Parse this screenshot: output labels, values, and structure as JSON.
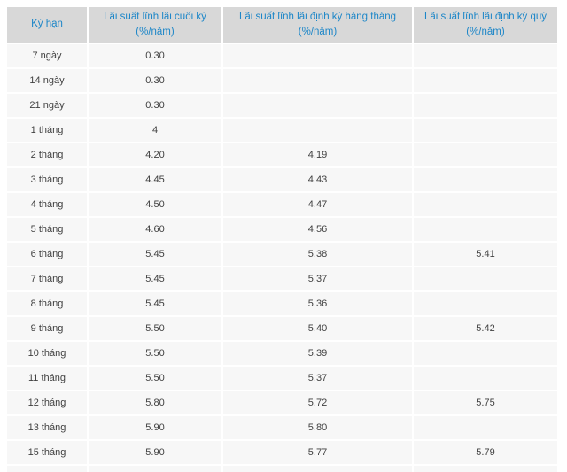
{
  "colors": {
    "page_background": "#ffffff",
    "header_background": "#d8d8d8",
    "header_text": "#1c86c8",
    "cell_background": "#f7f7f7",
    "cell_text": "#404040",
    "separator": "#ffffff"
  },
  "chart_data": {
    "type": "table",
    "title": "",
    "columns": [
      {
        "label": "Kỳ hạn",
        "sub": ""
      },
      {
        "label": "Lãi suất lĩnh lãi cuối kỳ",
        "sub": "(%/năm)"
      },
      {
        "label": "Lãi suất lĩnh lãi định kỳ hàng tháng",
        "sub": "(%/năm)"
      },
      {
        "label": "Lãi suất lĩnh lãi định kỳ quý",
        "sub": "(%/năm)"
      }
    ],
    "rows": [
      [
        "7 ngày",
        "0.30",
        "",
        ""
      ],
      [
        "14 ngày",
        "0.30",
        "",
        ""
      ],
      [
        "21 ngày",
        "0.30",
        "",
        ""
      ],
      [
        "1 tháng",
        "4",
        "",
        ""
      ],
      [
        "2 tháng",
        "4.20",
        "4.19",
        ""
      ],
      [
        "3 tháng",
        "4.45",
        "4.43",
        ""
      ],
      [
        "4 tháng",
        "4.50",
        "4.47",
        ""
      ],
      [
        "5 tháng",
        "4.60",
        "4.56",
        ""
      ],
      [
        "6 tháng",
        "5.45",
        "5.38",
        "5.41"
      ],
      [
        "7 tháng",
        "5.45",
        "5.37",
        ""
      ],
      [
        "8 tháng",
        "5.45",
        "5.36",
        ""
      ],
      [
        "9 tháng",
        "5.50",
        "5.40",
        "5.42"
      ],
      [
        "10 tháng",
        "5.50",
        "5.39",
        ""
      ],
      [
        "11 tháng",
        "5.50",
        "5.37",
        ""
      ],
      [
        "12 tháng",
        "5.80",
        "5.72",
        "5.75"
      ],
      [
        "13 tháng",
        "5.90",
        "5.80",
        ""
      ],
      [
        "15 tháng",
        "5.90",
        "5.77",
        "5.79"
      ],
      [
        "",
        "",
        "",
        ""
      ]
    ],
    "column_keys": [
      "term",
      "end-of-term",
      "monthly",
      "quarterly"
    ]
  }
}
